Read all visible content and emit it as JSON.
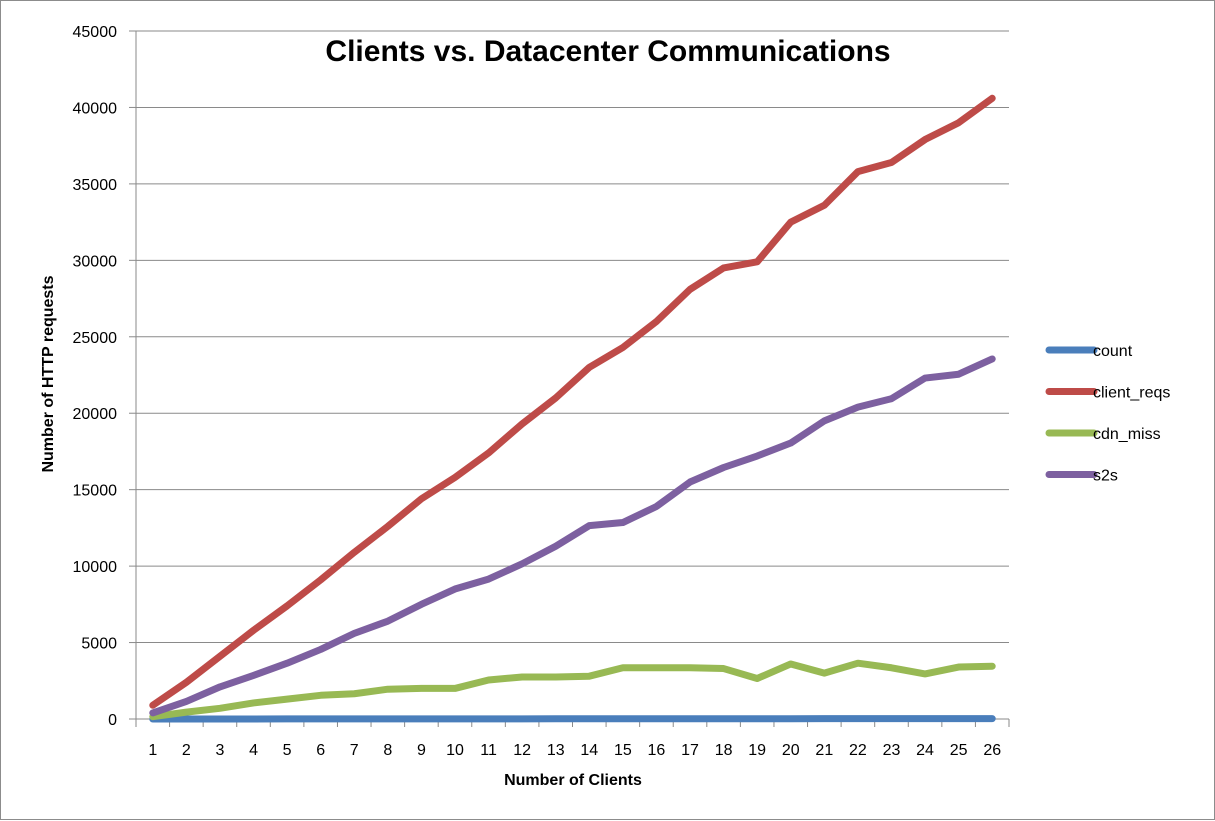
{
  "chart_data": {
    "type": "line",
    "title": "Clients vs. Datacenter Communications",
    "xlabel": "Number of Clients",
    "ylabel": "Number of HTTP requests",
    "categories": [
      "1",
      "2",
      "3",
      "4",
      "5",
      "6",
      "7",
      "8",
      "9",
      "10",
      "11",
      "12",
      "13",
      "14",
      "15",
      "16",
      "17",
      "18",
      "19",
      "20",
      "21",
      "22",
      "23",
      "24",
      "25",
      "26"
    ],
    "ylim": [
      0,
      45000
    ],
    "yticks": [
      0,
      5000,
      10000,
      15000,
      20000,
      25000,
      30000,
      35000,
      40000,
      45000
    ],
    "grid": true,
    "legend_position": "right",
    "series": [
      {
        "name": "count",
        "color": "#4a7ebb",
        "values": [
          1,
          2,
          3,
          4,
          5,
          6,
          7,
          8,
          9,
          10,
          11,
          12,
          13,
          14,
          15,
          16,
          17,
          18,
          19,
          20,
          21,
          22,
          23,
          24,
          25,
          26
        ]
      },
      {
        "name": "client_reqs",
        "color": "#be4b48",
        "values": [
          900,
          2400,
          4100,
          5800,
          7400,
          9100,
          10900,
          12600,
          14400,
          15800,
          17400,
          19300,
          21000,
          23000,
          24300,
          26000,
          28100,
          29500,
          29900,
          32500,
          33600,
          35800,
          36400,
          37900,
          39000,
          40600
        ]
      },
      {
        "name": "cdn_miss",
        "color": "#98b954",
        "values": [
          150,
          450,
          700,
          1050,
          1300,
          1550,
          1650,
          1950,
          2000,
          2000,
          2550,
          2750,
          2750,
          2800,
          3350,
          3350,
          3350,
          3300,
          2650,
          3600,
          3000,
          3650,
          3350,
          2950,
          3400,
          3450
        ]
      },
      {
        "name": "s2s",
        "color": "#7d60a0",
        "values": [
          400,
          1150,
          2100,
          2850,
          3650,
          4550,
          5600,
          6400,
          7500,
          8500,
          9150,
          10150,
          11300,
          12650,
          12850,
          13900,
          15500,
          16450,
          17200,
          18050,
          19500,
          20400,
          20950,
          22300,
          22550,
          23550
        ]
      }
    ]
  }
}
